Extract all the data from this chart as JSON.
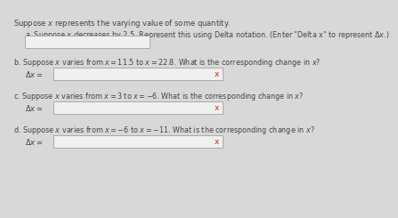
{
  "background_color": "#d8d8d8",
  "title_text": "Suppose $x$ represents the varying value of some quantity.",
  "part_a_label": "a. Suppose $x$ $\\it{decreases}$ by 2.5. Represent this using Delta notation. (Enter \"Delta x\" to represent $\\Delta x$.)",
  "part_b_text": "b. Suppose $x$ varies from $x = 11.5$ to $x = 22.8$. What is the corresponding change in $x$?",
  "part_b_label": "$\\Delta x =$",
  "part_c_text": "c. Suppose $x$ varies from $x = 3$ to $x = -6$. What is the corresponding change in $x$?",
  "part_c_label": "$\\Delta x =$",
  "part_d_text": "d. Suppose $x$ varies from $x = -6$ to $x = -11$. What is the corresponding change in $x$?",
  "part_d_label": "$\\Delta x =$",
  "box_color": "#f0f0f0",
  "box_edge_color": "#aaaaaa",
  "x_mark_color": "#cc2200",
  "font_size_title": 6.0,
  "font_size_parts": 5.8,
  "font_size_label": 6.0,
  "font_size_xmark": 6.5
}
